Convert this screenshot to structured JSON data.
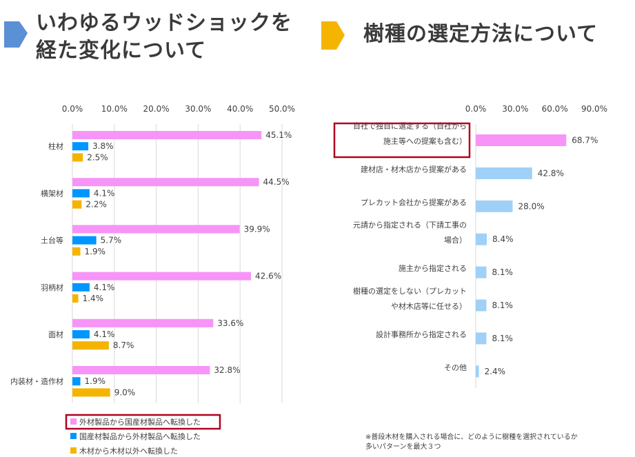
{
  "left_title": "いわゆるウッドショックを経た変化について",
  "right_title": "樹種の選定方法について",
  "colors": {
    "arrow_blue": "#5b8fd6",
    "arrow_gold": "#f5b400",
    "pink": "#f794f7",
    "blue": "#0096ff",
    "gold": "#f5b400",
    "lightblue": "#9fd0f7",
    "highlight": "#b0001e"
  },
  "note": [
    "※普段木材を購入される場合に、どのように樹種を選択されているか",
    "多いパターンを最大３つ"
  ],
  "chart_data": [
    {
      "type": "bar",
      "orientation": "horizontal",
      "categories": [
        "柱材",
        "横架材",
        "土台等",
        "羽柄材",
        "面材",
        "内装材・造作材"
      ],
      "series": [
        {
          "name": "外材製品から国産材製品へ転換した",
          "color": "#f794f7",
          "values": [
            45.1,
            44.5,
            39.9,
            42.6,
            33.6,
            32.8
          ],
          "labels": [
            "45.1%",
            "44.5%",
            "39.9%",
            "42.6%",
            "33.6%",
            "32.8%"
          ]
        },
        {
          "name": "国産材製品から外材製品へ転換した",
          "color": "#0096ff",
          "values": [
            3.8,
            4.1,
            5.7,
            4.1,
            4.1,
            1.9
          ],
          "labels": [
            "3.8%",
            "4.1%",
            "5.7%",
            "4.1%",
            "4.1%",
            "1.9%"
          ]
        },
        {
          "name": "木材から木材以外へ転換した",
          "color": "#f5b400",
          "values": [
            2.5,
            2.2,
            1.9,
            1.4,
            8.7,
            9.0
          ],
          "labels": [
            "2.5%",
            "2.2%",
            "1.9%",
            "1.4%",
            "8.7%",
            "9.0%"
          ]
        }
      ],
      "xlim": [
        0,
        50
      ],
      "ticks": [
        "0.0%",
        "10.0%",
        "20.0%",
        "30.0%",
        "40.0%",
        "50.0%"
      ],
      "legend_position": "bottom",
      "highlighted_legend": "外材製品から国産材製品へ転換した"
    },
    {
      "type": "bar",
      "orientation": "horizontal",
      "categories": [
        "自社で独自に選定する（自社から施主等への提案も含む）",
        "建材店・材木店から提案がある",
        "プレカット会社から提案がある",
        "元請から指定される（下請工事の場合）",
        "施主から指定される",
        "樹種の選定をしない（プレカットや材木店等に任せる）",
        "設計事務所から指定される",
        "その他"
      ],
      "category_lines": [
        [
          "自社で独自に選定する（自社から",
          "施主等への提案も含む）"
        ],
        [
          "建材店・材木店から提案がある"
        ],
        [
          "プレカット会社から提案がある"
        ],
        [
          "元請から指定される（下請工事の",
          "場合）"
        ],
        [
          "施主から指定される"
        ],
        [
          "樹種の選定をしない（プレカット",
          "や材木店等に任せる）"
        ],
        [
          "設計事務所から指定される"
        ],
        [
          "その他"
        ]
      ],
      "values": [
        68.7,
        42.8,
        28.0,
        8.4,
        8.1,
        8.1,
        8.1,
        2.4
      ],
      "labels": [
        "68.7%",
        "42.8%",
        "28.0%",
        "8.4%",
        "8.1%",
        "8.1%",
        "8.1%",
        "2.4%"
      ],
      "colors": [
        "#f794f7",
        "#9fd0f7",
        "#9fd0f7",
        "#9fd0f7",
        "#9fd0f7",
        "#9fd0f7",
        "#9fd0f7",
        "#9fd0f7"
      ],
      "xlim": [
        0,
        90
      ],
      "ticks": [
        "0.0%",
        "30.0%",
        "60.0%",
        "90.0%"
      ],
      "highlighted_category": "自社で独自に選定する（自社から施主等への提案も含む）"
    }
  ]
}
